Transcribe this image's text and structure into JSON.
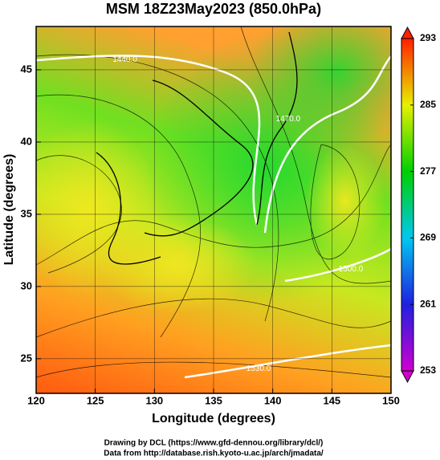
{
  "chart_data": {
    "type": "map",
    "title": "MSM 18Z23May2023 (850.0hPa)",
    "x_label": "Longitude (degrees)",
    "y_label": "Latitude  (degrees)",
    "xlim": [
      120,
      150
    ],
    "xticks": [
      120,
      125,
      130,
      135,
      140,
      145,
      150
    ],
    "ylim": [
      22.6,
      48
    ],
    "yticks": [
      25,
      30,
      35,
      40,
      45
    ],
    "colorbar": {
      "lim": [
        253,
        293
      ],
      "ticks": [
        253,
        261,
        269,
        277,
        285,
        293
      ],
      "colors": [
        "#d000d0",
        "#2020e0",
        "#00c8f0",
        "#00d000",
        "#e8f000",
        "#ff2000"
      ]
    },
    "contour_labels": [
      {
        "text": "1440.0",
        "x": 127.5,
        "y": 45.7
      },
      {
        "text": "1470.0",
        "x": 141.3,
        "y": 41.6
      },
      {
        "text": "1500.0",
        "x": 146.6,
        "y": 31.2
      },
      {
        "text": "1530.0",
        "x": 138.8,
        "y": 24.3
      }
    ],
    "footer": [
      "Drawing by DCL (https://www.gfd-dennou.org/library/dcl/)",
      "Data from http://database.rish.kyoto-u.ac.jp/arch/jmadata/"
    ]
  }
}
